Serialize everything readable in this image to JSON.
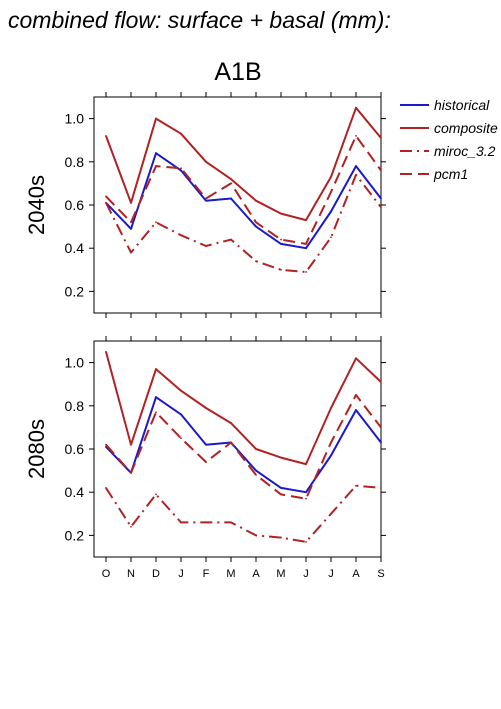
{
  "header": {
    "title": "combined flow: surface + basal (mm):"
  },
  "chart_data": {
    "type": "line",
    "title": "A1B",
    "categories": [
      "O",
      "N",
      "D",
      "J",
      "F",
      "M",
      "A",
      "M",
      "J",
      "J",
      "A",
      "S"
    ],
    "ylim": [
      0.1,
      1.1
    ],
    "yticks": [
      0.2,
      0.4,
      0.6,
      0.8,
      1.0
    ],
    "ytick_labels": [
      "0.2",
      "0.4",
      "0.6",
      "0.8",
      "1.0"
    ],
    "grid": false,
    "legend_position": "top-right, outside plot",
    "series_styles": [
      {
        "name": "historical",
        "color": "#1a1acc",
        "dash": "solid"
      },
      {
        "name": "composite",
        "color": "#b22222",
        "dash": "solid"
      },
      {
        "name": "miroc_3.2",
        "color": "#b22222",
        "dash": "dashdot"
      },
      {
        "name": "pcm1",
        "color": "#b22222",
        "dash": "dashed"
      }
    ],
    "panels": [
      {
        "ylabel": "2040s",
        "series": [
          {
            "name": "historical",
            "values": [
              0.61,
              0.49,
              0.84,
              0.76,
              0.62,
              0.63,
              0.5,
              0.42,
              0.4,
              0.57,
              0.78,
              0.63
            ]
          },
          {
            "name": "composite",
            "values": [
              0.92,
              0.61,
              1.0,
              0.93,
              0.8,
              0.72,
              0.62,
              0.56,
              0.53,
              0.73,
              1.05,
              0.91
            ]
          },
          {
            "name": "miroc_3.2",
            "values": [
              0.61,
              0.38,
              0.52,
              0.46,
              0.41,
              0.44,
              0.34,
              0.3,
              0.29,
              0.45,
              0.74,
              0.59
            ]
          },
          {
            "name": "pcm1",
            "values": [
              0.64,
              0.52,
              0.78,
              0.77,
              0.63,
              0.7,
              0.52,
              0.44,
              0.42,
              0.66,
              0.92,
              0.76
            ]
          }
        ]
      },
      {
        "ylabel": "2080s",
        "series": [
          {
            "name": "historical",
            "values": [
              0.61,
              0.49,
              0.84,
              0.76,
              0.62,
              0.63,
              0.5,
              0.42,
              0.4,
              0.57,
              0.78,
              0.63
            ]
          },
          {
            "name": "composite",
            "values": [
              1.05,
              0.62,
              0.97,
              0.87,
              0.79,
              0.72,
              0.6,
              0.56,
              0.53,
              0.79,
              1.02,
              0.91
            ]
          },
          {
            "name": "miroc_3.2",
            "values": [
              0.42,
              0.24,
              0.39,
              0.26,
              0.26,
              0.26,
              0.2,
              0.19,
              0.17,
              0.3,
              0.43,
              0.42
            ]
          },
          {
            "name": "pcm1",
            "values": [
              0.62,
              0.49,
              0.77,
              0.65,
              0.54,
              0.63,
              0.48,
              0.39,
              0.37,
              0.63,
              0.85,
              0.7
            ]
          }
        ]
      }
    ]
  }
}
